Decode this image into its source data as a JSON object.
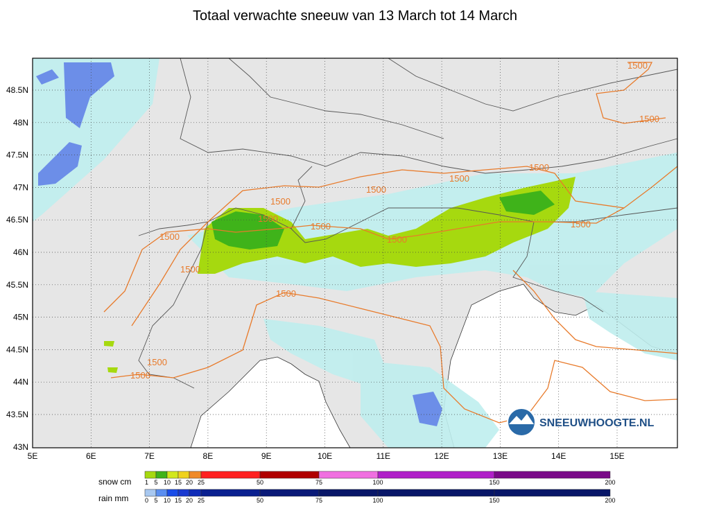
{
  "title": "Totaal verwachte sneeuw van 13 March tot 14 March",
  "lon_labels": [
    "5E",
    "6E",
    "7E",
    "8E",
    "9E",
    "10E",
    "11E",
    "12E",
    "13E",
    "14E",
    "15E"
  ],
  "lat_labels": [
    "48.5N",
    "48N",
    "47.5N",
    "47N",
    "46.5N",
    "46N",
    "45.5N",
    "45N",
    "44.5N",
    "44N",
    "43.5N",
    "43N"
  ],
  "contour_label": "1500",
  "logo_text": "SNEEUWHOOGTE.NL",
  "snow_legend": {
    "label": "snow cm",
    "ticks": [
      "1",
      "5",
      "10",
      "15",
      "20",
      "25",
      "50",
      "75",
      "100",
      "150",
      "200"
    ],
    "colors": [
      "#a6d90f",
      "#3fb31a",
      "#d2e81c",
      "#f0d21e",
      "#f08a28",
      "#ff2020",
      "#b00000",
      "#f070e0",
      "#b020c8",
      "#7a0a88"
    ]
  },
  "rain_legend": {
    "label": "rain mm",
    "ticks": [
      "0",
      "5",
      "10",
      "15",
      "20",
      "25",
      "50",
      "75",
      "100",
      "150",
      "200"
    ],
    "colors": [
      "#a8c8f0",
      "#5a8ef0",
      "#1a4de8",
      "#1a3ad0",
      "#0e2cb8",
      "#0a2090",
      "#0a1a78",
      "#081668"
    ]
  },
  "colors": {
    "land": "#e6e6e6",
    "sea": "#ffffff",
    "rain_light": "#bfeeee",
    "rain_heavy": "#6c8ee8",
    "snow_light": "#a6d90f",
    "snow_mid": "#3fb31a",
    "contour": "#e87a2a",
    "border": "#555555"
  }
}
